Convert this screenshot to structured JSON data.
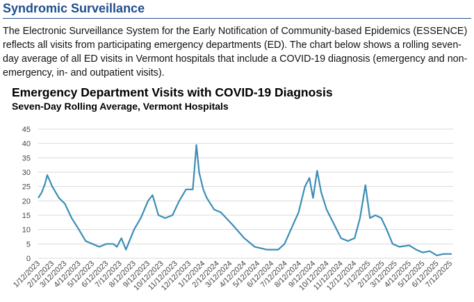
{
  "header": {
    "title": "Syndromic Surveillance"
  },
  "body": {
    "paragraph": "The Electronic Surveillance System for the Early Notification of Community-based Epidemics (ESSENCE) reflects all visits from participating emergency departments (ED). The chart below shows a rolling seven-day average of all ED visits in Vermont hospitals that include a COVID-19 diagnosis (emergency and non-emergency, in- and outpatient visits)."
  },
  "chart_data": {
    "type": "line",
    "title": "Emergency Department Visits with COVID-19 Diagnosis",
    "subtitle": "Seven-Day Rolling Average, Vermont Hospitals",
    "x": [
      "1/12/2023",
      "1/20/2023",
      "1/27/2023",
      "2/1/2023",
      "2/12/2023",
      "2/27/2023",
      "3/12/2023",
      "3/27/2023",
      "4/12/2023",
      "4/27/2023",
      "5/12/2023",
      "5/27/2023",
      "6/12/2023",
      "6/27/2023",
      "7/5/2023",
      "7/15/2023",
      "7/25/2023",
      "8/12/2023",
      "8/27/2023",
      "9/12/2023",
      "9/22/2023",
      "10/5/2023",
      "10/20/2023",
      "11/5/2023",
      "11/20/2023",
      "12/5/2023",
      "12/20/2023",
      "12/28/2023",
      "1/3/2024",
      "1/12/2024",
      "1/20/2024",
      "2/5/2024",
      "2/20/2024",
      "3/15/2024",
      "4/12/2024",
      "5/5/2024",
      "6/1/2024",
      "6/26/2024",
      "7/10/2024",
      "7/24/2024",
      "8/10/2024",
      "8/24/2024",
      "9/3/2024",
      "9/11/2024",
      "9/20/2024",
      "9/29/2024",
      "10/11/2024",
      "10/27/2024",
      "11/12/2024",
      "11/27/2024",
      "12/12/2024",
      "12/24/2024",
      "1/5/2025",
      "1/15/2025",
      "1/27/2025",
      "2/9/2025",
      "2/21/2025",
      "3/6/2025",
      "3/21/2025",
      "4/12/2025",
      "4/27/2025",
      "5/12/2025",
      "5/27/2025",
      "6/12/2025",
      "6/27/2025",
      "7/15/2025"
    ],
    "values": [
      21,
      23,
      26,
      29,
      25,
      21,
      19,
      14,
      10,
      6,
      5,
      4,
      5,
      5,
      4,
      7,
      3,
      10,
      14,
      20,
      22,
      15,
      14,
      15,
      20,
      24,
      24,
      39.5,
      30,
      24,
      21,
      17,
      16,
      12,
      7,
      4,
      3,
      3,
      5,
      10,
      16,
      25,
      28,
      21,
      30.5,
      23,
      17,
      12,
      7,
      6,
      7,
      14,
      25.5,
      14,
      15,
      14,
      10,
      5,
      4,
      4.5,
      3,
      2,
      2.5,
      1,
      1.5,
      1.5
    ],
    "color": "#3a8db5",
    "xlim": [
      "1/12/2023",
      "7/18/2025"
    ],
    "xticks": [
      "1/12/2023",
      "2/12/2023",
      "3/12/2023",
      "4/12/2023",
      "5/12/2023",
      "6/12/2023",
      "7/12/2023",
      "8/12/2023",
      "9/12/2023",
      "10/12/2023",
      "11/12/2023",
      "12/12/2023",
      "1/12/2024",
      "2/12/2024",
      "3/12/2024",
      "4/12/2024",
      "5/12/2024",
      "6/12/2024",
      "7/12/2024",
      "8/12/2024",
      "9/12/2024",
      "10/12/2024",
      "11/12/2024",
      "12/12/2024",
      "1/12/2025",
      "2/12/2025",
      "3/12/2025",
      "4/12/2025",
      "5/12/2025",
      "6/12/2025",
      "7/12/2025"
    ],
    "ylim": [
      0,
      45
    ],
    "yticks": [
      0,
      5,
      10,
      15,
      20,
      25,
      30,
      35,
      40,
      45
    ],
    "grid": true
  }
}
